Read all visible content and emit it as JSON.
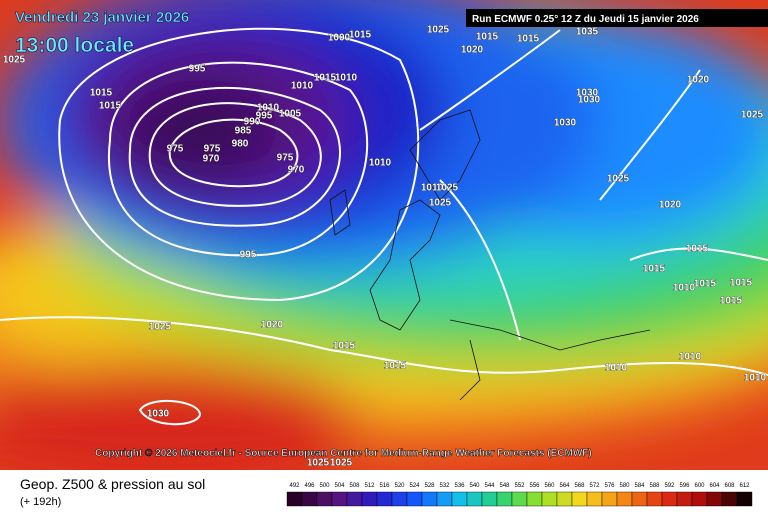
{
  "header": {
    "date": "Vendredi 23 janvier 2026",
    "time": "13:00 locale",
    "run": "Run ECMWF 0.25° 12 Z du Jeudi 15 janvier 2026"
  },
  "map": {
    "pressure_labels": [
      1025,
      1015,
      1015,
      995,
      1000,
      1015,
      1025,
      1020,
      1015,
      1015,
      1035,
      1015,
      1010,
      1010,
      1010,
      995,
      1005,
      990,
      985,
      980,
      975,
      975,
      970,
      975,
      970,
      1010,
      1030,
      1030,
      1030,
      1020,
      1025,
      1025,
      1010,
      1025,
      1025,
      1020,
      995,
      1015,
      1015,
      1010,
      1015,
      1015,
      1015,
      1025,
      1020,
      1015,
      1015,
      1010,
      1010,
      1010,
      1030,
      1025,
      1025
    ]
  },
  "copyright": "Copyright © 2026 Meteociel.fr - Source European Centre for Medium-Range Weather Forecasts (ECMWF)",
  "footer": {
    "title": "Geop. Z500 & pression au sol",
    "lead": "(+ 192h)"
  },
  "legend": {
    "levels": [
      492,
      496,
      500,
      504,
      508,
      512,
      516,
      520,
      524,
      528,
      532,
      536,
      540,
      544,
      548,
      552,
      556,
      560,
      564,
      568,
      572,
      576,
      580,
      584,
      588,
      592,
      596,
      600,
      604,
      608,
      612
    ]
  }
}
